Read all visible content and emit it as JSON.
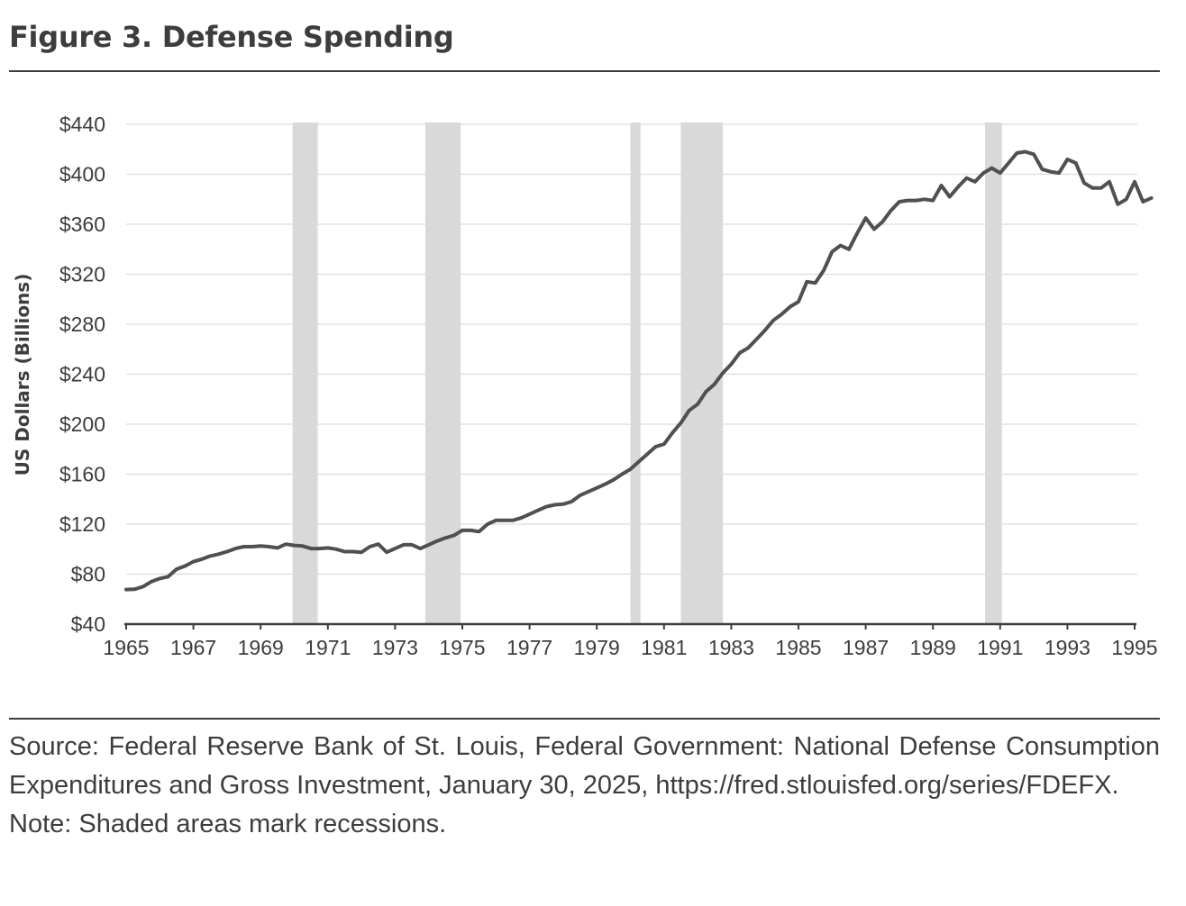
{
  "figure": {
    "title": "Figure 3. Defense Spending",
    "source": "Source: Federal Reserve Bank of St. Louis, Federal Government: National Defense Consumption Expenditures and Gross Investment, January 30, 2025, https://fred.stlouisfed.org/series/FDEFX.",
    "note": "Note: Shaded areas mark recessions."
  },
  "colors": {
    "line": "#505050",
    "recession": "#d9d9d9",
    "grid": "#dcdcdc",
    "axis": "#3d3d3d",
    "text": "#3d3d3d"
  },
  "chart_data": {
    "type": "line",
    "title": "Figure 3. Defense Spending",
    "xlabel": "",
    "ylabel": "US Dollars (Billions)",
    "xlim": [
      1965,
      1995
    ],
    "ylim": [
      40,
      440
    ],
    "grid": true,
    "legend": "none",
    "y_ticks": [
      40,
      80,
      120,
      160,
      200,
      240,
      280,
      320,
      360,
      400,
      440
    ],
    "y_tick_labels": [
      "$40",
      "$80",
      "$120",
      "$160",
      "$200",
      "$240",
      "$280",
      "$320",
      "$360",
      "$400",
      "$440"
    ],
    "x_ticks": [
      1965,
      1967,
      1969,
      1971,
      1973,
      1975,
      1977,
      1979,
      1981,
      1983,
      1985,
      1987,
      1989,
      1991,
      1993,
      1995
    ],
    "x_tick_labels": [
      "1965",
      "1967",
      "1969",
      "1971",
      "1973",
      "1975",
      "1977",
      "1979",
      "1981",
      "1983",
      "1985",
      "1987",
      "1989",
      "1991",
      "1993",
      "1995"
    ],
    "recessions": [
      {
        "start": 1969.95,
        "end": 1970.7
      },
      {
        "start": 1973.9,
        "end": 1974.95
      },
      {
        "start": 1980.0,
        "end": 1980.3
      },
      {
        "start": 1981.5,
        "end": 1982.75
      },
      {
        "start": 1990.55,
        "end": 1991.05
      }
    ],
    "series": [
      {
        "name": "National Defense Consumption Expenditures and Gross Investment",
        "x_start": 1965.0,
        "x_step": 0.25,
        "values": [
          67.7,
          67.9,
          70,
          74,
          76.5,
          78,
          84,
          86.5,
          90,
          92,
          94.5,
          96,
          98,
          100.5,
          102,
          102,
          102.5,
          102,
          101,
          104,
          103,
          102.5,
          100.5,
          100.5,
          101,
          100,
          98,
          98,
          97.5,
          102,
          104,
          97.5,
          100.5,
          103.5,
          103.5,
          100.5,
          103.5,
          106.5,
          109,
          111,
          115,
          115,
          114,
          120,
          123,
          123,
          123,
          125,
          128,
          131,
          134,
          135.5,
          136,
          138,
          143,
          146,
          149,
          152,
          155.5,
          160,
          164,
          170,
          176,
          182,
          184,
          193,
          201,
          211,
          216,
          226,
          232,
          241,
          248,
          257,
          261,
          268,
          275,
          283,
          288,
          294,
          298,
          314,
          313,
          323,
          338,
          343,
          340,
          353,
          365,
          356,
          362,
          371,
          378,
          379,
          379,
          380,
          379,
          391,
          382,
          390,
          397,
          394,
          401,
          405,
          401,
          409,
          417,
          418,
          416,
          404,
          402,
          401,
          412,
          409,
          393,
          389,
          389,
          394,
          376,
          380,
          394,
          378,
          381
        ]
      }
    ]
  }
}
